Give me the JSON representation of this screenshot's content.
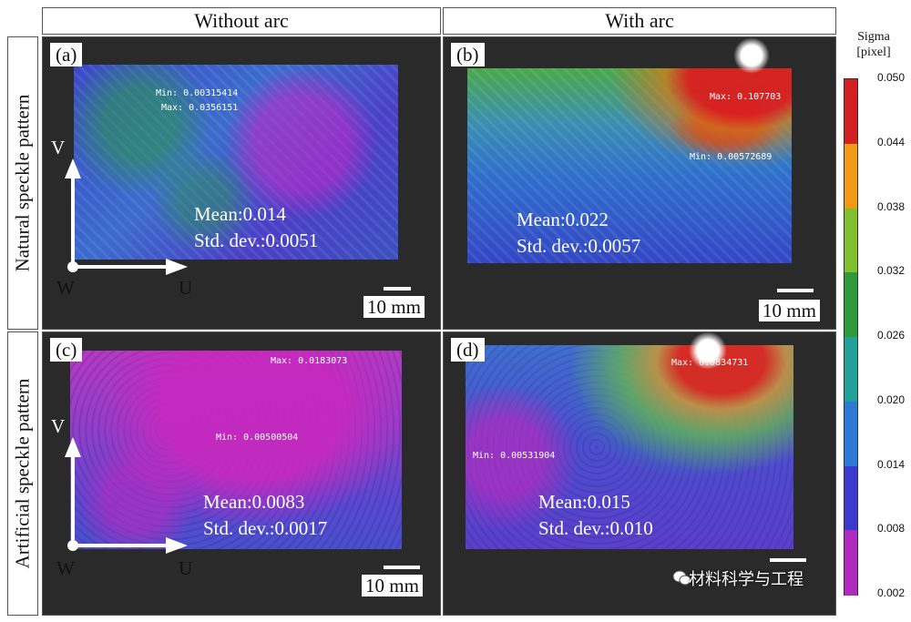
{
  "columns": [
    "Without arc",
    "With arc"
  ],
  "rows": [
    "Natural speckle pattern",
    "Artificial speckle pattern"
  ],
  "colorbar": {
    "title_line1": "Sigma",
    "title_line2": "[pixel]",
    "ticks": [
      "0.050",
      "0.044",
      "0.038",
      "0.032",
      "0.026",
      "0.020",
      "0.014",
      "0.008",
      "0.002"
    ],
    "colors": [
      "#d42020",
      "#f29a14",
      "#7fc02e",
      "#2e9a3a",
      "#22a09a",
      "#2e78d6",
      "#3a3ad0",
      "#b02abf"
    ]
  },
  "axes": {
    "v": "V",
    "u": "U",
    "w": "W"
  },
  "scale_label": "10 mm",
  "panels": [
    {
      "tag": "(a)",
      "mean": "Mean:0.014",
      "std": "Std. dev.:0.0051",
      "min_label": "Min: 0.00315414",
      "max_label": "Max: 0.0356151"
    },
    {
      "tag": "(b)",
      "mean": "Mean:0.022",
      "std": "Std. dev.:0.0057",
      "min_label": "Min: 0.00572689",
      "max_label": "Max: 0.107703"
    },
    {
      "tag": "(c)",
      "mean": "Mean:0.0083",
      "std": "Std. dev.:0.0017",
      "min_label": "Min: 0.00500504",
      "max_label": "Max: 0.0183073"
    },
    {
      "tag": "(d)",
      "mean": "Mean:0.015",
      "std": "Std. dev.:0.010",
      "min_label": "Min: 0.00531904",
      "max_label": "Max: 0.0834731"
    }
  ],
  "watermark": "材料科学与工程"
}
